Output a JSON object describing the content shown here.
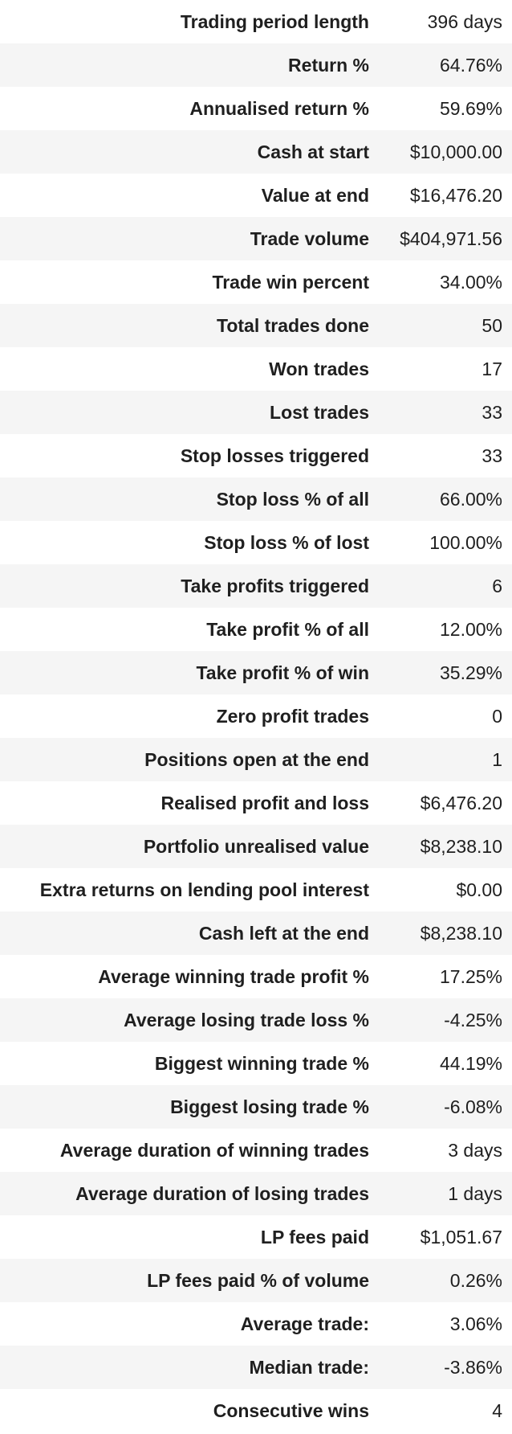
{
  "stats": [
    {
      "label": "Trading period length",
      "value": "396 days"
    },
    {
      "label": "Return %",
      "value": "64.76%"
    },
    {
      "label": "Annualised return %",
      "value": "59.69%"
    },
    {
      "label": "Cash at start",
      "value": "$10,000.00"
    },
    {
      "label": "Value at end",
      "value": "$16,476.20"
    },
    {
      "label": "Trade volume",
      "value": "$404,971.56"
    },
    {
      "label": "Trade win percent",
      "value": "34.00%"
    },
    {
      "label": "Total trades done",
      "value": "50"
    },
    {
      "label": "Won trades",
      "value": "17"
    },
    {
      "label": "Lost trades",
      "value": "33"
    },
    {
      "label": "Stop losses triggered",
      "value": "33"
    },
    {
      "label": "Stop loss % of all",
      "value": "66.00%"
    },
    {
      "label": "Stop loss % of lost",
      "value": "100.00%"
    },
    {
      "label": "Take profits triggered",
      "value": "6"
    },
    {
      "label": "Take profit % of all",
      "value": "12.00%"
    },
    {
      "label": "Take profit % of win",
      "value": "35.29%"
    },
    {
      "label": "Zero profit trades",
      "value": "0"
    },
    {
      "label": "Positions open at the end",
      "value": "1"
    },
    {
      "label": "Realised profit and loss",
      "value": "$6,476.20"
    },
    {
      "label": "Portfolio unrealised value",
      "value": "$8,238.10"
    },
    {
      "label": "Extra returns on lending pool interest",
      "value": "$0.00"
    },
    {
      "label": "Cash left at the end",
      "value": "$8,238.10"
    },
    {
      "label": "Average winning trade profit %",
      "value": "17.25%"
    },
    {
      "label": "Average losing trade loss %",
      "value": "-4.25%"
    },
    {
      "label": "Biggest winning trade %",
      "value": "44.19%"
    },
    {
      "label": "Biggest losing trade %",
      "value": "-6.08%"
    },
    {
      "label": "Average duration of winning trades",
      "value": "3 days"
    },
    {
      "label": "Average duration of losing trades",
      "value": "1 days"
    },
    {
      "label": "LP fees paid",
      "value": "$1,051.67"
    },
    {
      "label": "LP fees paid % of volume",
      "value": "0.26%"
    },
    {
      "label": "Average trade:",
      "value": "3.06%"
    },
    {
      "label": "Median trade:",
      "value": "-3.86%"
    },
    {
      "label": "Consecutive wins",
      "value": "4"
    }
  ]
}
